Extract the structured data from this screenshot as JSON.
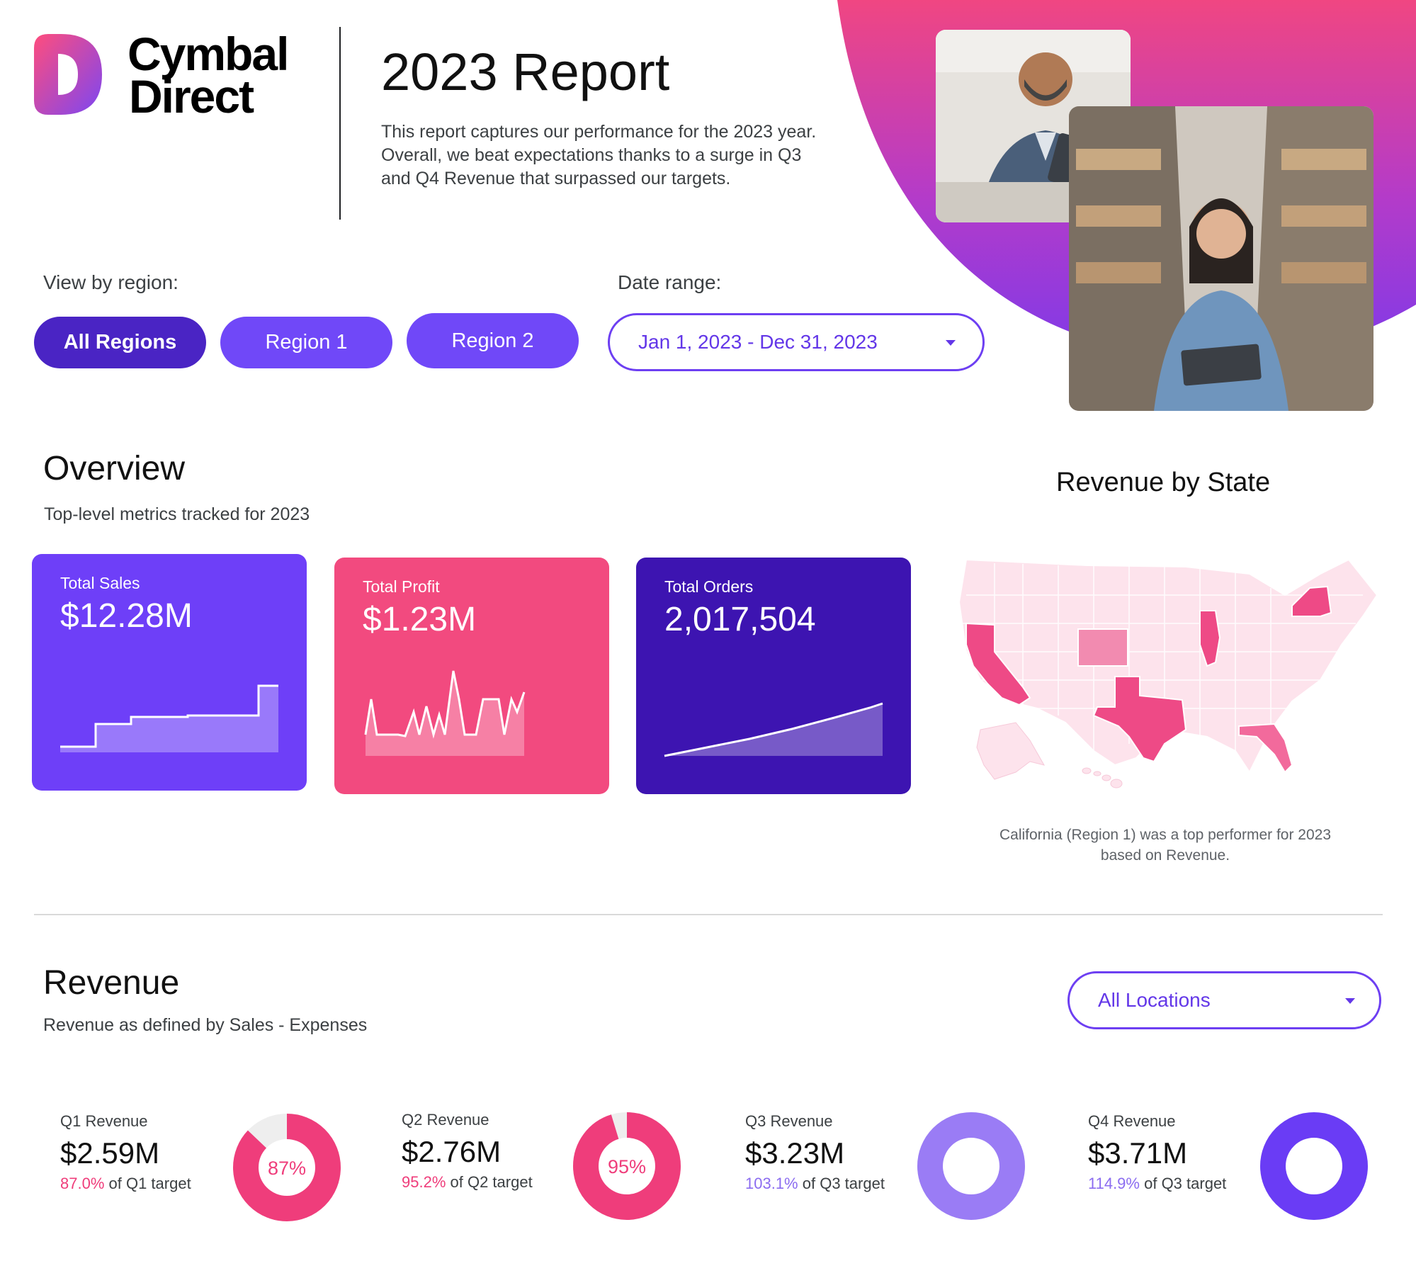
{
  "brand": {
    "name_line1": "Cymbal",
    "name_line2": "Direct",
    "logo_icon": "cymbal-d-logo-icon"
  },
  "header": {
    "title": "2023 Report",
    "intro": "This report captures our performance for the 2023 year. Overall, we beat expectations thanks to a surge in Q3 and Q4 Revenue that surpassed our targets."
  },
  "filters": {
    "region_label": "View by region:",
    "regions": [
      {
        "label": "All Regions",
        "active": true
      },
      {
        "label": "Region 1",
        "active": false
      },
      {
        "label": "Region 2",
        "active": false
      }
    ],
    "date_label": "Date range:",
    "date_value": "Jan 1, 2023 - Dec 31, 2023"
  },
  "overview": {
    "title": "Overview",
    "subtitle": "Top-level metrics tracked for 2023",
    "cards": [
      {
        "label": "Total Sales",
        "value": "$12.28M",
        "color": "#6e3ff8"
      },
      {
        "label": "Total Profit",
        "value": "$1.23M",
        "color": "#f24a7f"
      },
      {
        "label": "Total Orders",
        "value": "2,017,504",
        "color": "#3d14b1"
      }
    ]
  },
  "map": {
    "title": "Revenue by State",
    "note": "California (Region 1) was a top performer for 2023 based on Revenue.",
    "highlight_color": "#ee4a86",
    "mid_color": "#f28bb0",
    "base_color": "#fde3ec"
  },
  "revenue": {
    "title": "Revenue",
    "subtitle": "Revenue as defined by Sales - Expenses",
    "location_value": "All Locations",
    "quarters": [
      {
        "label": "Q1 Revenue",
        "value": "$2.59M",
        "pct": "87.0%",
        "note": "of Q1 target",
        "donut": "87%",
        "fraction": 0.87,
        "style": "pink"
      },
      {
        "label": "Q2 Revenue",
        "value": "$2.76M",
        "pct": "95.2%",
        "note": "of Q2 target",
        "donut": "95%",
        "fraction": 0.952,
        "style": "pink"
      },
      {
        "label": "Q3 Revenue",
        "value": "$3.23M",
        "pct": "103.1%",
        "note": "of Q3 target",
        "donut": "103%",
        "fraction": 1.031,
        "style": "light-purple"
      },
      {
        "label": "Q4 Revenue",
        "value": "$3.71M",
        "pct": "114.9%",
        "note": "of Q3 target",
        "donut": "115%",
        "fraction": 1.149,
        "style": "purple"
      }
    ]
  }
}
